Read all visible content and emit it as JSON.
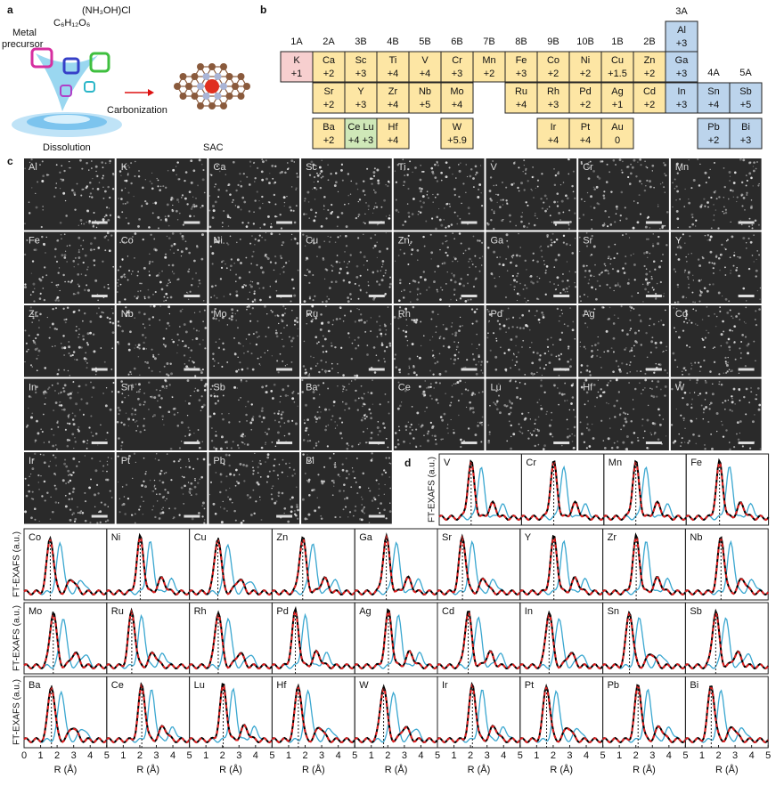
{
  "panel_a": {
    "letter": "a",
    "precursor": [
      "Metal",
      "precursor"
    ],
    "glucose": "C₆H₁₂O₆",
    "salt": "(NH₃OH)Cl",
    "step": "Carbonization",
    "dissolution": "Dissolution",
    "product": "SAC"
  },
  "panel_b": {
    "letter": "b",
    "groups": [
      "1A",
      "2A",
      "3B",
      "4B",
      "5B",
      "6B",
      "7B",
      "8B",
      "9B",
      "10B",
      "1B",
      "2B",
      "3A",
      "4A",
      "5A"
    ],
    "rows": [
      [
        null,
        null,
        null,
        null,
        null,
        null,
        null,
        null,
        null,
        null,
        null,
        null,
        {
          "symbol": "Al",
          "state": "+3"
        },
        null,
        null
      ],
      [
        {
          "symbol": "K",
          "state": "+1"
        },
        {
          "symbol": "Ca",
          "state": "+2"
        },
        {
          "symbol": "Sc",
          "state": "+3"
        },
        {
          "symbol": "Ti",
          "state": "+4"
        },
        {
          "symbol": "V",
          "state": "+4"
        },
        {
          "symbol": "Cr",
          "state": "+3"
        },
        {
          "symbol": "Mn",
          "state": "+2"
        },
        {
          "symbol": "Fe",
          "state": "+3"
        },
        {
          "symbol": "Co",
          "state": "+2"
        },
        {
          "symbol": "Ni",
          "state": "+2"
        },
        {
          "symbol": "Cu",
          "state": "+1.5"
        },
        {
          "symbol": "Zn",
          "state": "+2"
        },
        {
          "symbol": "Ga",
          "state": "+3"
        },
        null,
        null
      ],
      [
        null,
        {
          "symbol": "Sr",
          "state": "+2"
        },
        {
          "symbol": "Y",
          "state": "+3"
        },
        {
          "symbol": "Zr",
          "state": "+4"
        },
        {
          "symbol": "Nb",
          "state": "+5"
        },
        {
          "symbol": "Mo",
          "state": "+4"
        },
        null,
        {
          "symbol": "Ru",
          "state": "+4"
        },
        {
          "symbol": "Rh",
          "state": "+3"
        },
        {
          "symbol": "Pd",
          "state": "+2"
        },
        {
          "symbol": "Ag",
          "state": "+1"
        },
        {
          "symbol": "Cd",
          "state": "+2"
        },
        {
          "symbol": "In",
          "state": "+3"
        },
        {
          "symbol": "Sn",
          "state": "+4"
        },
        {
          "symbol": "Sb",
          "state": "+5"
        }
      ],
      [
        null,
        {
          "symbol": "Ba",
          "state": "+2"
        },
        {
          "symbol": "Ce Lu",
          "state": "+4 +3"
        },
        {
          "symbol": "Hf",
          "state": "+4"
        },
        null,
        {
          "symbol": "W",
          "state": "+5.9"
        },
        null,
        null,
        {
          "symbol": "Ir",
          "state": "+4"
        },
        {
          "symbol": "Pt",
          "state": "+4"
        },
        {
          "symbol": "Au",
          "state": "0"
        },
        null,
        null,
        {
          "symbol": "Pb",
          "state": "+2"
        },
        {
          "symbol": "Bi",
          "state": "+3"
        }
      ]
    ]
  },
  "panel_c": {
    "letter": "c",
    "labels": [
      "Al",
      "K",
      "Ca",
      "Sc",
      "Ti",
      "V",
      "Cr",
      "Mn",
      "Fe",
      "Co",
      "Ni",
      "Cu",
      "Zn",
      "Ga",
      "Sr",
      "Y",
      "Zr",
      "Nb",
      "Mo",
      "Ru",
      "Rh",
      "Pd",
      "Ag",
      "Cd",
      "In",
      "Sn",
      "Sb",
      "Ba",
      "Ce",
      "Lu",
      "Hf",
      "W",
      "Ir",
      "Pt",
      "Pb",
      "Bi"
    ]
  },
  "panel_d": {
    "letter": "d",
    "labels": [
      "V",
      "Cr",
      "Mn",
      "Fe",
      "Co",
      "Ni",
      "Cu",
      "Zn",
      "Ga",
      "Sr",
      "Y",
      "Zr",
      "Nb",
      "Mo",
      "Ru",
      "Rh",
      "Pd",
      "Ag",
      "Cd",
      "In",
      "Sn",
      "Sb",
      "Ba",
      "Ce",
      "Lu",
      "Hf",
      "W",
      "Ir",
      "Pt",
      "Pb",
      "Bi"
    ],
    "ylabel": "FT-EXAFS (a.u.)",
    "xlabel": "R (Å)",
    "xlim": [
      0,
      5
    ],
    "xticks": [
      0,
      1,
      2,
      3,
      4,
      5
    ]
  }
}
